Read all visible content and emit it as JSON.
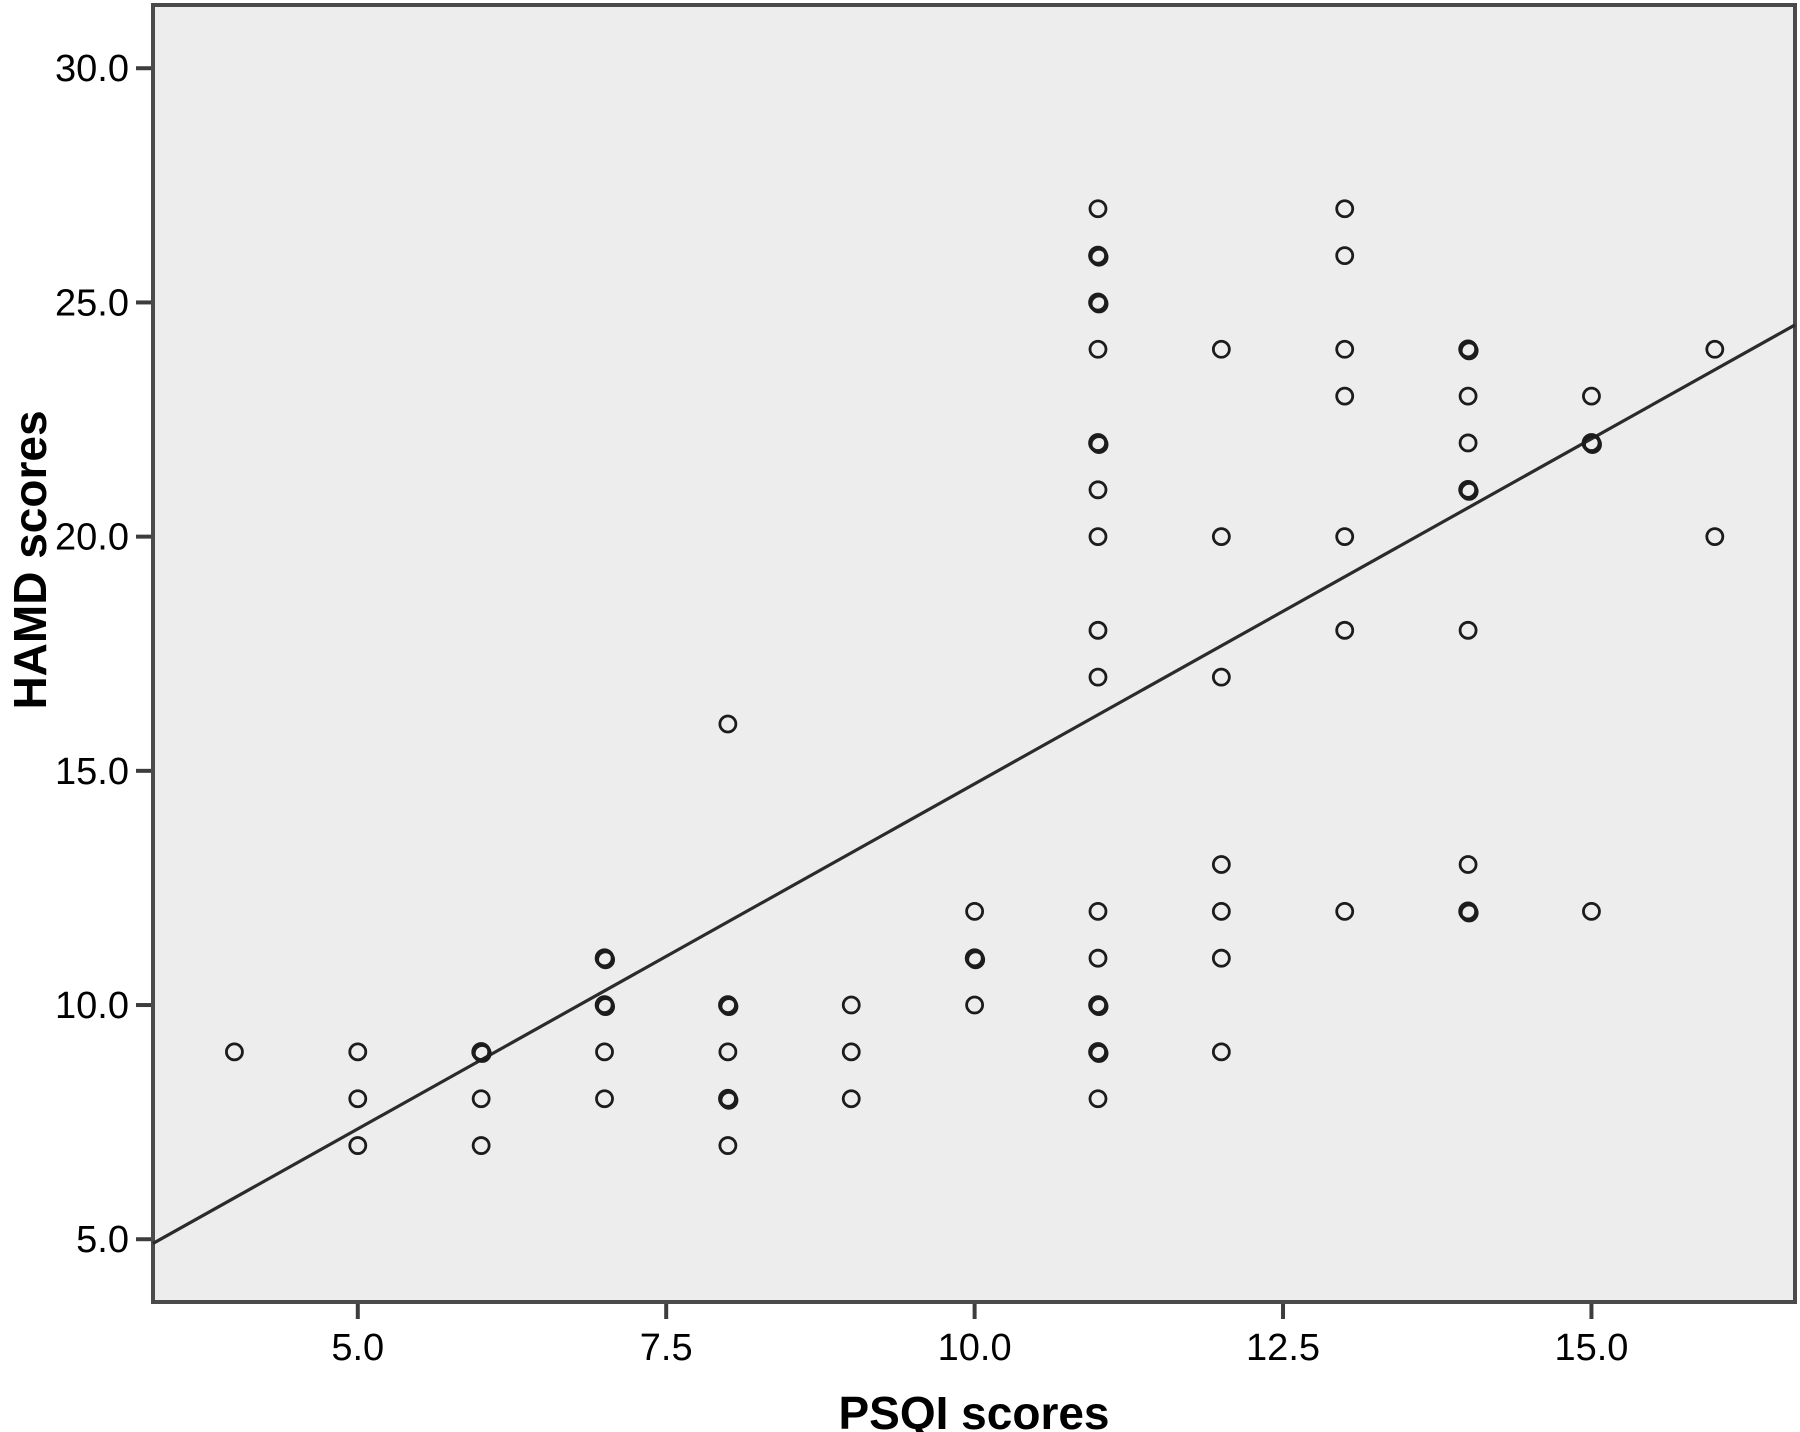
{
  "chart_data": {
    "type": "scatter",
    "title": "",
    "xlabel": "PSQI scores",
    "ylabel": "HAMD scores",
    "x_domain": [
      3.34,
      16.65
    ],
    "y_domain": [
      3.66,
      31.35
    ],
    "grid": "off",
    "legend": "none",
    "x_ticks": [
      {
        "value": 5,
        "label": "5.0"
      },
      {
        "value": 7.5,
        "label": "7.5"
      },
      {
        "value": 10,
        "label": "10.0"
      },
      {
        "value": 12.5,
        "label": "12.5"
      },
      {
        "value": 15,
        "label": "15.0"
      }
    ],
    "y_ticks": [
      {
        "value": 5,
        "label": "5.0"
      },
      {
        "value": 10,
        "label": "10.0"
      },
      {
        "value": 15,
        "label": "15.0"
      },
      {
        "value": 20,
        "label": "20.0"
      },
      {
        "value": 25,
        "label": "25.0"
      },
      {
        "value": 30,
        "label": "30.0"
      }
    ],
    "points": [
      [
        4,
        9,
        1
      ],
      [
        5,
        9,
        1
      ],
      [
        5,
        8,
        1
      ],
      [
        5,
        7,
        1
      ],
      [
        6,
        9,
        2
      ],
      [
        6,
        8,
        1
      ],
      [
        6,
        7,
        1
      ],
      [
        7,
        11,
        2
      ],
      [
        7,
        10,
        2
      ],
      [
        7,
        9,
        1
      ],
      [
        7,
        8,
        1
      ],
      [
        8,
        16,
        1
      ],
      [
        8,
        10,
        2
      ],
      [
        8,
        9,
        1
      ],
      [
        8,
        8,
        2
      ],
      [
        8,
        7,
        1
      ],
      [
        9,
        10,
        1
      ],
      [
        9,
        9,
        1
      ],
      [
        9,
        8,
        1
      ],
      [
        10,
        12,
        1
      ],
      [
        10,
        11,
        2
      ],
      [
        10,
        10,
        1
      ],
      [
        11,
        27,
        1
      ],
      [
        11,
        26,
        2
      ],
      [
        11,
        25,
        2
      ],
      [
        11,
        24,
        1
      ],
      [
        11,
        22,
        2
      ],
      [
        11,
        21,
        1
      ],
      [
        11,
        20,
        1
      ],
      [
        11,
        18,
        1
      ],
      [
        11,
        17,
        1
      ],
      [
        11,
        12,
        1
      ],
      [
        11,
        11,
        1
      ],
      [
        11,
        10,
        2
      ],
      [
        11,
        9,
        2
      ],
      [
        11,
        8,
        1
      ],
      [
        12,
        24,
        1
      ],
      [
        12,
        20,
        1
      ],
      [
        12,
        17,
        1
      ],
      [
        12,
        13,
        1
      ],
      [
        12,
        12,
        1
      ],
      [
        12,
        11,
        1
      ],
      [
        12,
        9,
        1
      ],
      [
        13,
        27,
        1
      ],
      [
        13,
        26,
        1
      ],
      [
        13,
        24,
        1
      ],
      [
        13,
        23,
        1
      ],
      [
        13,
        20,
        1
      ],
      [
        13,
        18,
        1
      ],
      [
        13,
        12,
        1
      ],
      [
        14,
        24,
        2
      ],
      [
        14,
        23,
        1
      ],
      [
        14,
        22,
        1
      ],
      [
        14,
        21,
        2
      ],
      [
        14,
        18,
        1
      ],
      [
        14,
        13,
        1
      ],
      [
        14,
        12,
        2
      ],
      [
        15,
        23,
        1
      ],
      [
        15,
        22,
        2
      ],
      [
        15,
        12,
        1
      ],
      [
        16,
        24,
        1
      ],
      [
        16,
        20,
        1
      ]
    ],
    "trend_line": {
      "x1": 3.34,
      "y1": 4.91,
      "x2": 16.65,
      "y2": 24.52,
      "slope": 1.47,
      "intercept": 0.0
    },
    "styles": {
      "plot_bg": "#ededed",
      "page_bg": "#ffffff",
      "border_color": "#4a4a4a",
      "tick_color": "#3d3d3d",
      "marker_color": "#1c1c1c",
      "line_color": "#2b2b2b",
      "text_color": "#000000"
    }
  }
}
